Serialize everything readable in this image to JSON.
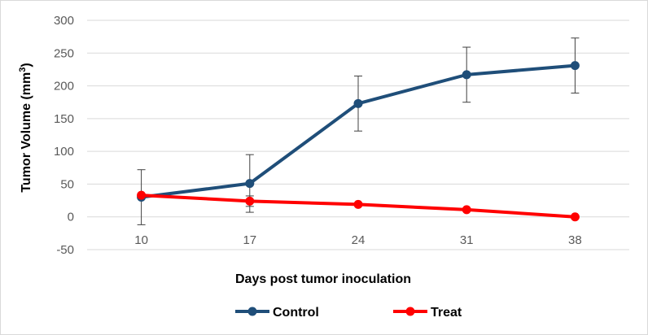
{
  "chart_data": {
    "type": "line",
    "title": "",
    "xlabel": "Days post tumor inoculation",
    "ylabel_main": "Tumor Volume (mm",
    "ylabel_sup": "3",
    "ylabel_close": ")",
    "categories": [
      "10",
      "17",
      "24",
      "31",
      "38"
    ],
    "yticks": [
      "300",
      "250",
      "200",
      "150",
      "100",
      "50",
      "0",
      "-50"
    ],
    "ylim": [
      -50,
      300
    ],
    "grid": true,
    "legend_position": "bottom",
    "series": [
      {
        "name": "Control",
        "color": "#1f4e79",
        "values": [
          30,
          51,
          173,
          217,
          231
        ],
        "error": [
          42,
          44,
          42,
          42,
          42
        ]
      },
      {
        "name": "Treat",
        "color": "#ff0000",
        "values": [
          33,
          24,
          19,
          11,
          0
        ],
        "error": [
          0,
          8,
          0,
          0,
          0
        ]
      }
    ]
  }
}
